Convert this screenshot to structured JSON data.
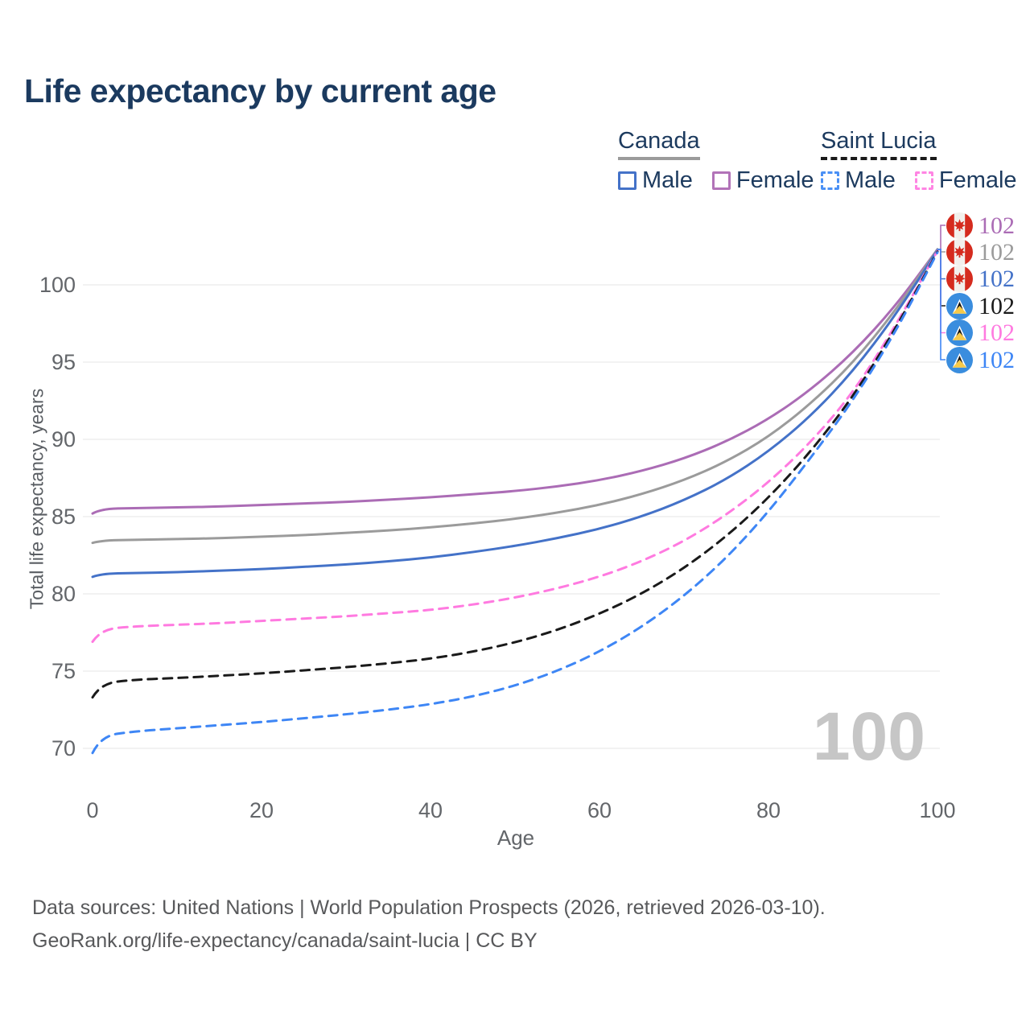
{
  "title": "Life expectancy by current age",
  "legend": {
    "groups": [
      {
        "name": "Canada",
        "line_style": "solid",
        "underline_color": "#9b9b9b",
        "items": [
          {
            "label": "Male",
            "color": "#4472c8"
          },
          {
            "label": "Female",
            "color": "#b273b8"
          }
        ]
      },
      {
        "name": "Saint Lucia",
        "line_style": "dashed",
        "underline_color": "#1a1a1a",
        "items": [
          {
            "label": "Male",
            "color": "#4a90f5"
          },
          {
            "label": "Female",
            "color": "#ff85e3"
          }
        ]
      }
    ]
  },
  "chart_data": {
    "type": "line",
    "title": "Life expectancy by current age",
    "xlabel": "Age",
    "ylabel": "Total life expectancy, years",
    "x_ticks": [
      0,
      20,
      40,
      60,
      80,
      100
    ],
    "y_ticks": [
      70,
      75,
      80,
      85,
      90,
      95,
      100
    ],
    "xlim": [
      0,
      100
    ],
    "ylim": [
      68.5,
      103
    ],
    "grid": "horizontal",
    "x": [
      0,
      1,
      5,
      10,
      15,
      20,
      25,
      30,
      35,
      40,
      45,
      50,
      55,
      60,
      65,
      70,
      75,
      80,
      85,
      90,
      95,
      100
    ],
    "series": [
      {
        "name": "Canada Female",
        "color": "#ab6cb5",
        "dashed": false,
        "values": [
          85.2,
          85.5,
          85.55,
          85.6,
          85.65,
          85.75,
          85.85,
          85.95,
          86.1,
          86.25,
          86.45,
          86.65,
          86.95,
          87.35,
          87.95,
          88.75,
          89.85,
          91.3,
          93.2,
          95.6,
          98.6,
          102.3
        ]
      },
      {
        "name": "Canada Both sexes",
        "color": "#9b9b9b",
        "dashed": false,
        "values": [
          83.3,
          83.45,
          83.5,
          83.55,
          83.6,
          83.7,
          83.8,
          83.95,
          84.1,
          84.3,
          84.55,
          84.85,
          85.25,
          85.75,
          86.45,
          87.35,
          88.55,
          90.15,
          92.3,
          94.95,
          98.3,
          102.3
        ]
      },
      {
        "name": "Canada Male",
        "color": "#4472c8",
        "dashed": false,
        "values": [
          81.1,
          81.3,
          81.35,
          81.4,
          81.5,
          81.6,
          81.75,
          81.9,
          82.1,
          82.35,
          82.7,
          83.1,
          83.6,
          84.2,
          85.0,
          86.05,
          87.4,
          89.2,
          91.5,
          94.4,
          98.0,
          102.25
        ]
      },
      {
        "name": "Saint Lucia Female",
        "color": "#ff7ae0",
        "dashed": true,
        "values": [
          76.9,
          77.7,
          77.9,
          78.0,
          78.1,
          78.25,
          78.4,
          78.55,
          78.75,
          78.95,
          79.3,
          79.75,
          80.35,
          81.1,
          82.1,
          83.4,
          85.1,
          87.2,
          89.8,
          93.0,
          97.3,
          102.2
        ]
      },
      {
        "name": "Saint Lucia Both sexes",
        "color": "#1a1a1a",
        "dashed": true,
        "values": [
          73.3,
          74.2,
          74.45,
          74.55,
          74.7,
          74.85,
          75.05,
          75.25,
          75.5,
          75.8,
          76.25,
          76.85,
          77.65,
          78.7,
          80.0,
          81.65,
          83.7,
          86.2,
          89.2,
          92.75,
          97.1,
          102.15
        ]
      },
      {
        "name": "Saint Lucia Male",
        "color": "#3e86f5",
        "dashed": true,
        "values": [
          69.7,
          70.8,
          71.1,
          71.3,
          71.5,
          71.7,
          71.95,
          72.2,
          72.5,
          72.85,
          73.35,
          74.05,
          75.0,
          76.25,
          77.85,
          79.85,
          82.3,
          85.3,
          88.8,
          92.5,
          96.9,
          102.1
        ]
      }
    ],
    "end_labels": [
      {
        "country": "canada",
        "value": "102",
        "color": "#ab6cb5"
      },
      {
        "country": "canada",
        "value": "102",
        "color": "#9b9b9b"
      },
      {
        "country": "canada",
        "value": "102",
        "color": "#4472c8"
      },
      {
        "country": "saint-lucia",
        "value": "102",
        "color": "#1a1a1a"
      },
      {
        "country": "saint-lucia",
        "value": "102",
        "color": "#ff7ae0"
      },
      {
        "country": "saint-lucia",
        "value": "102",
        "color": "#3e86f5"
      }
    ]
  },
  "watermark": "100",
  "footer": {
    "line1": "Data sources: United Nations | World Population Prospects (2026, retrieved 2026-03-10).",
    "line2": "GeoRank.org/life-expectancy/canada/saint-lucia | CC BY"
  }
}
